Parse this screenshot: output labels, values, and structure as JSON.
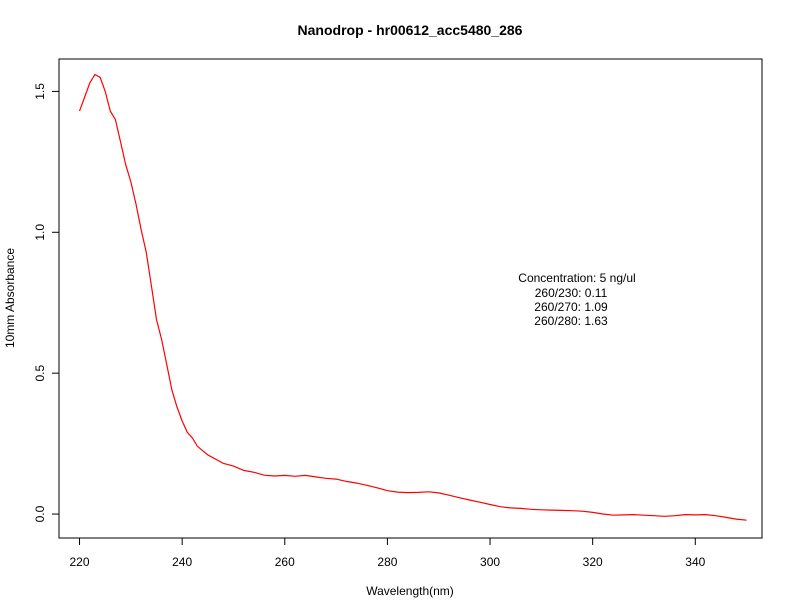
{
  "chart_data": {
    "type": "line",
    "title": "Nanodrop - hr00612_acc5480_286",
    "xlabel": "Wavelength(nm)",
    "ylabel": "10mm Absorbance",
    "xlim": [
      216,
      353
    ],
    "ylim": [
      -0.085,
      1.615
    ],
    "x_ticks": [
      220,
      240,
      260,
      280,
      300,
      320,
      340
    ],
    "x_tick_labels": [
      "220",
      "240",
      "260",
      "280",
      "300",
      "320",
      "340"
    ],
    "y_ticks": [
      0.0,
      0.5,
      1.0,
      1.5
    ],
    "y_tick_labels": [
      "0.0",
      "0.5",
      "1.0",
      "1.5"
    ],
    "grid": false,
    "series": [
      {
        "color": "#ff0000",
        "x": [
          220,
          221,
          222,
          223,
          224,
          225,
          226,
          227,
          228,
          229,
          230,
          231,
          232,
          233,
          234,
          235,
          236,
          237,
          238,
          239,
          240,
          241,
          242,
          243,
          244,
          245,
          246,
          247,
          248,
          249,
          250,
          252,
          254,
          256,
          258,
          260,
          262,
          264,
          266,
          268,
          270,
          272,
          274,
          276,
          278,
          280,
          282,
          284,
          286,
          288,
          290,
          292,
          294,
          296,
          298,
          300,
          302,
          304,
          306,
          308,
          310,
          312,
          314,
          316,
          318,
          320,
          322,
          324,
          326,
          328,
          330,
          332,
          334,
          336,
          338,
          340,
          342,
          344,
          346,
          348,
          350
        ],
        "y": [
          1.43,
          1.48,
          1.53,
          1.56,
          1.55,
          1.5,
          1.43,
          1.4,
          1.32,
          1.24,
          1.18,
          1.1,
          1.01,
          0.93,
          0.81,
          0.69,
          0.62,
          0.53,
          0.44,
          0.38,
          0.33,
          0.29,
          0.27,
          0.24,
          0.225,
          0.21,
          0.2,
          0.19,
          0.18,
          0.175,
          0.17,
          0.155,
          0.148,
          0.138,
          0.135,
          0.137,
          0.134,
          0.137,
          0.132,
          0.127,
          0.124,
          0.116,
          0.11,
          0.102,
          0.093,
          0.083,
          0.078,
          0.076,
          0.077,
          0.079,
          0.075,
          0.067,
          0.058,
          0.05,
          0.042,
          0.034,
          0.026,
          0.022,
          0.02,
          0.017,
          0.015,
          0.014,
          0.013,
          0.012,
          0.01,
          0.006,
          0.0,
          -0.004,
          -0.003,
          -0.002,
          -0.004,
          -0.006,
          -0.008,
          -0.006,
          -0.002,
          -0.003,
          -0.002,
          -0.006,
          -0.012,
          -0.018,
          -0.022
        ]
      }
    ],
    "annotations": [
      "Concentration: 5 ng/ul",
      "260/230: 0.11",
      "260/270: 1.09",
      "260/280: 1.63"
    ]
  }
}
